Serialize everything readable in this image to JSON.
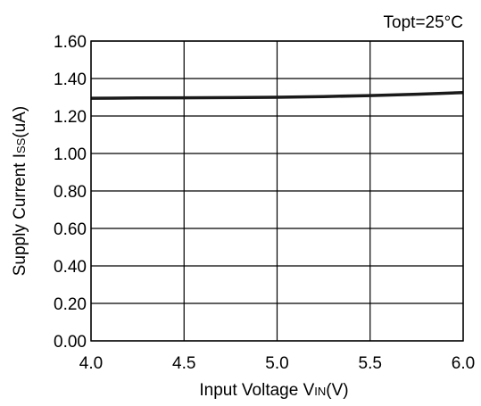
{
  "chart_data": {
    "type": "line",
    "annotation": "Topt=25°C",
    "xlabel": {
      "main": "Input Voltage V",
      "sub": "IN",
      "tail": "(V)"
    },
    "ylabel": {
      "main": "Supply Current I",
      "sub": "SS",
      "tail": "(uA)"
    },
    "xlim": [
      4.0,
      6.0
    ],
    "ylim": [
      0.0,
      1.6
    ],
    "xticks": [
      "4.0",
      "4.5",
      "5.0",
      "5.5",
      "6.0"
    ],
    "yticks": [
      "0.00",
      "0.20",
      "0.40",
      "0.60",
      "0.80",
      "1.00",
      "1.20",
      "1.40",
      "1.60"
    ],
    "grid": true,
    "series": [
      {
        "color": "#1a1a1a",
        "x": [
          4.0,
          4.25,
          4.5,
          4.75,
          5.0,
          5.25,
          5.5,
          5.75,
          6.0
        ],
        "y": [
          1.295,
          1.296,
          1.297,
          1.298,
          1.3,
          1.304,
          1.309,
          1.316,
          1.325
        ]
      }
    ]
  }
}
